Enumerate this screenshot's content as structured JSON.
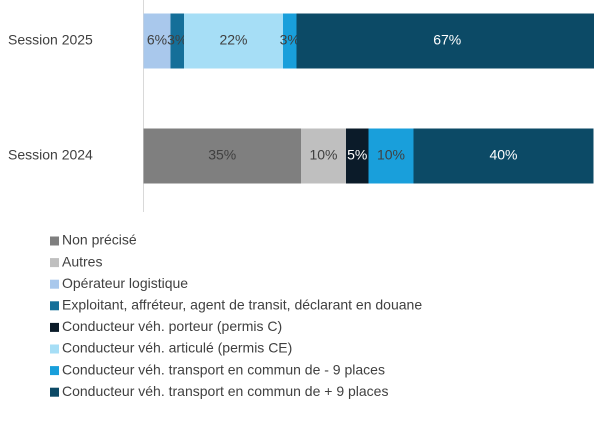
{
  "chart_data": {
    "type": "stacked-bar-horizontal",
    "categories": [
      "Session 2025",
      "Session 2024"
    ],
    "series": [
      {
        "name": "Non précisé",
        "color": "#7f7f7f",
        "label_color": "#404040",
        "values": [
          null,
          35
        ],
        "value_labels": [
          null,
          "35%"
        ]
      },
      {
        "name": "Autres",
        "color": "#bfbfbf",
        "label_color": "#404040",
        "values": [
          null,
          10
        ],
        "value_labels": [
          null,
          "10%"
        ]
      },
      {
        "name": "Opérateur logistique",
        "color": "#a9c8ec",
        "label_color": "#404040",
        "values": [
          6,
          null
        ],
        "value_labels": [
          "6%",
          null
        ]
      },
      {
        "name": "Exploitant, affréteur, agent de transit, déclarant en douane",
        "color": "#156f99",
        "label_color": "#404040",
        "values": [
          3,
          null
        ],
        "value_labels": [
          "3%",
          null
        ]
      },
      {
        "name": "Conducteur véh. porteur (permis C)",
        "color": "#0b1b29",
        "label_color": "#ffffff",
        "values": [
          null,
          5
        ],
        "value_labels": [
          null,
          "5%"
        ]
      },
      {
        "name": "Conducteur véh. articulé (permis CE)",
        "color": "#a6def6",
        "label_color": "#404040",
        "values": [
          22,
          null
        ],
        "value_labels": [
          "22%",
          null
        ]
      },
      {
        "name": "Conducteur véh. transport en commun de - 9 places",
        "color": "#199fdb",
        "label_color": "#404040",
        "values": [
          3,
          10
        ],
        "value_labels": [
          "3%",
          "10%"
        ]
      },
      {
        "name": "Conducteur véh. transport en commun de + 9 places",
        "color": "#0c4a66",
        "label_color": "#ffffff",
        "values": [
          67,
          40
        ],
        "value_labels": [
          "67%",
          "40%"
        ]
      }
    ]
  }
}
